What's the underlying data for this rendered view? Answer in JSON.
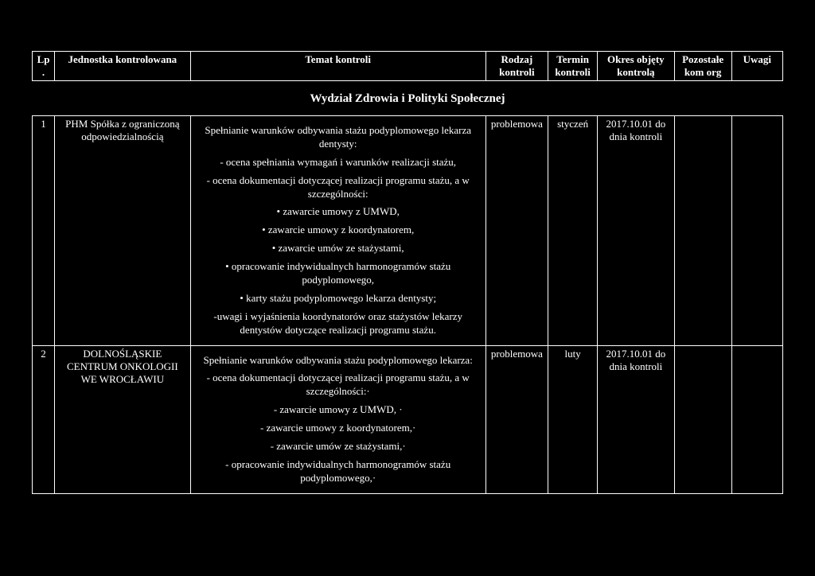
{
  "headers": {
    "lp": "Lp.",
    "unit": "Jednostka kontrolowana",
    "topic": "Temat kontroli",
    "type": "Rodzaj kontroli",
    "term": "Termin kontroli",
    "period": "Okres objęty kontrolą",
    "other": "Pozostałe kom org",
    "notes": "Uwagi"
  },
  "section_title": "Wydział Zdrowia i Polityki Społecznej",
  "rows": [
    {
      "lp": "1",
      "unit": "PHM Spółka z ograniczoną odpowiedzialnością",
      "topic_lines": [
        "Spełnianie warunków odbywania stażu podyplomowego lekarza dentysty:",
        "- ocena spełniania wymagań i warunków realizacji stażu,",
        "- ocena dokumentacji dotyczącej realizacji programu stażu, a w szczególności:",
        "• zawarcie umowy z UMWD,",
        "• zawarcie umowy z koordynatorem,",
        "• zawarcie umów ze stażystami,",
        "• opracowanie indywidualnych harmonogramów stażu podyplomowego,",
        "• karty stażu podyplomowego lekarza dentysty;",
        "-uwagi i wyjaśnienia koordynatorów oraz stażystów lekarzy dentystów dotyczące realizacji programu stażu."
      ],
      "type": "problemowa",
      "term": "styczeń",
      "period": "2017.10.01 do dnia kontroli",
      "other": "",
      "notes": ""
    },
    {
      "lp": "2",
      "unit": "DOLNOŚLĄSKIE CENTRUM ONKOLOGII WE WROCŁAWIU",
      "topic_lines": [
        "Spełnianie warunków odbywania stażu podyplomowego lekarza:",
        "- ocena dokumentacji dotyczącej realizacji programu stażu, a w szczególności:·",
        "- zawarcie umowy z UMWD, ·",
        "- zawarcie umowy z koordynatorem,·",
        "- zawarcie umów ze stażystami,·",
        "- opracowanie indywidualnych harmonogramów stażu podyplomowego,·"
      ],
      "type": "problemowa",
      "term": "luty",
      "period": "2017.10.01 do dnia kontroli",
      "other": "",
      "notes": ""
    }
  ]
}
